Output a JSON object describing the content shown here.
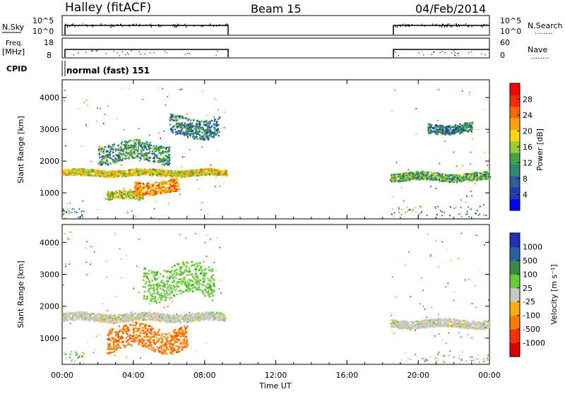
{
  "header": {
    "station": "Halley (fitACF)",
    "beam": "Beam 15",
    "date": "04/Feb/2014"
  },
  "side_labels": {
    "nsky": "N.Sky",
    "freq_line1": "Freq.",
    "freq_line2": "[MHz]",
    "cpid": "CPID",
    "nsearch": "N.Search",
    "nave": "Nave",
    "dots": "........"
  },
  "small_axes": {
    "nsky_ticks": [
      "10^5",
      "10^0"
    ],
    "nsearch_ticks": [
      "10^5",
      "10^0"
    ],
    "freq_ticks": [
      "18",
      "8"
    ],
    "nave_ticks": [
      "60",
      "0"
    ]
  },
  "cpid_text": "normal (fast) 151",
  "x_axis": {
    "label": "Time UT",
    "ticks": [
      "00:00",
      "04:00",
      "08:00",
      "12:00",
      "16:00",
      "20:00",
      "00:00"
    ]
  },
  "chart_data": [
    {
      "type": "heatmap",
      "name": "power-panel",
      "xlabel": "Time UT",
      "ylabel": "Slant Range [km]",
      "xlim_hours": [
        0,
        24
      ],
      "ylim_km": [
        180,
        4560
      ],
      "y_ticks": [
        "4000",
        "3000",
        "2000",
        "1000"
      ],
      "colorbar": {
        "label": "Power [dB]",
        "ticks": [
          "28",
          "24",
          "20",
          "16",
          "12",
          "8",
          "4"
        ],
        "colors": [
          "#0000ff",
          "#1b3fb0",
          "#2d5f96",
          "#2e8a6a",
          "#44a24a",
          "#9acd32",
          "#ffd700",
          "#ffa500",
          "#ff6a00",
          "#ff2a00",
          "#ff0000"
        ]
      },
      "data_gaps_hours": [
        [
          9.2,
          18.4
        ]
      ],
      "features": [
        {
          "kind": "band",
          "t_start": 0.0,
          "t_end": 9.2,
          "range_km": [
            1550,
            1750
          ],
          "power_db": 18
        },
        {
          "kind": "band",
          "t_start": 2.0,
          "t_end": 6.0,
          "range_km": [
            2000,
            2600
          ],
          "power_db": 10
        },
        {
          "kind": "band",
          "t_start": 2.5,
          "t_end": 4.5,
          "range_km": [
            800,
            1050
          ],
          "power_db": 16
        },
        {
          "kind": "band",
          "t_start": 4.0,
          "t_end": 6.5,
          "range_km": [
            1000,
            1400
          ],
          "power_db": 22
        },
        {
          "kind": "band",
          "t_start": 6.0,
          "t_end": 8.8,
          "range_km": [
            2800,
            3400
          ],
          "power_db": 8
        },
        {
          "kind": "band",
          "t_start": 18.4,
          "t_end": 24.0,
          "range_km": [
            1400,
            1650
          ],
          "power_db": 12
        },
        {
          "kind": "band",
          "t_start": 20.5,
          "t_end": 23.0,
          "range_km": [
            2900,
            3200
          ],
          "power_db": 8
        }
      ]
    },
    {
      "type": "heatmap",
      "name": "velocity-panel",
      "xlabel": "Time UT",
      "ylabel": "Slant Range [km]",
      "xlim_hours": [
        0,
        24
      ],
      "ylim_km": [
        180,
        4560
      ],
      "y_ticks": [
        "4000",
        "3000",
        "2000",
        "1000"
      ],
      "colorbar": {
        "label": "Velocity [m s⁻¹]",
        "ticks": [
          "1000",
          "500",
          "100",
          "25",
          "-25",
          "-100",
          "-500",
          "-1000"
        ],
        "colors": [
          "#1f2fbf",
          "#2e5fa0",
          "#3a8a4a",
          "#66cc33",
          "#c8c8c0",
          "#ffb000",
          "#ff7a00",
          "#ff3000",
          "#e00000"
        ]
      },
      "data_gaps_hours": [
        [
          9.2,
          18.4
        ]
      ],
      "features": [
        {
          "kind": "band",
          "t_start": 0.0,
          "t_end": 9.2,
          "range_km": [
            1550,
            1800
          ],
          "velocity": 0
        },
        {
          "kind": "band",
          "t_start": 2.5,
          "t_end": 7.0,
          "range_km": [
            650,
            1400
          ],
          "velocity": -500
        },
        {
          "kind": "band",
          "t_start": 4.5,
          "t_end": 8.5,
          "range_km": [
            2300,
            3300
          ],
          "velocity": 100
        },
        {
          "kind": "band",
          "t_start": 18.4,
          "t_end": 24.0,
          "range_km": [
            1350,
            1600
          ],
          "velocity": 0
        }
      ]
    }
  ]
}
